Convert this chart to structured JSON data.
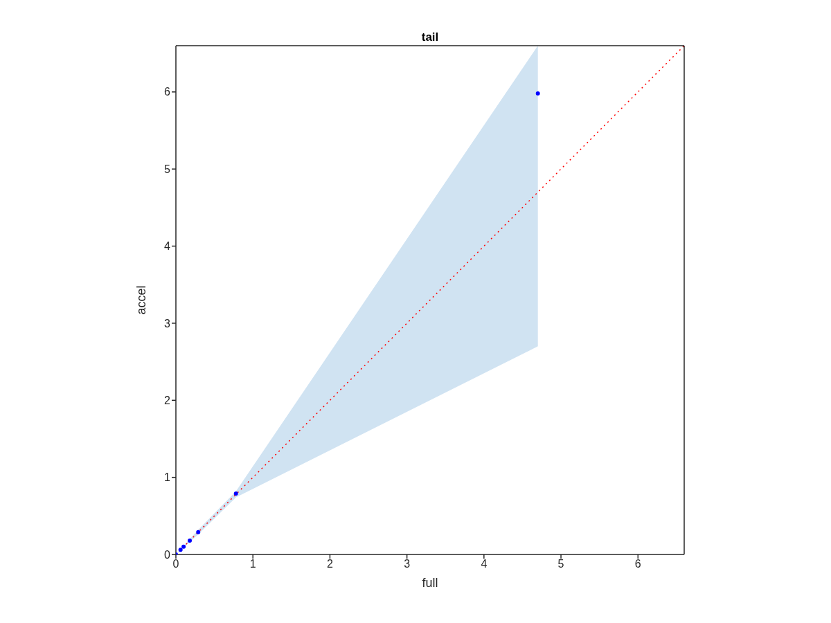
{
  "chart_data": {
    "type": "scatter",
    "title": "tail",
    "xlabel": "full",
    "ylabel": "accel",
    "xlim": [
      0,
      6.6
    ],
    "ylim": [
      0,
      6.6
    ],
    "xticks": [
      0,
      1,
      2,
      3,
      4,
      5,
      6
    ],
    "yticks": [
      0,
      1,
      2,
      3,
      4,
      5,
      6
    ],
    "grid": false,
    "legend": false,
    "series": [
      {
        "color": "#0000ff",
        "marker": "circle",
        "x": [
          0,
          0.06,
          0.1,
          0.18,
          0.29,
          0.78,
          4.7
        ],
        "values": [
          0,
          0.06,
          0.1,
          0.18,
          0.29,
          0.79,
          5.98
        ],
        "lower": [
          0,
          0.05,
          0.09,
          0.16,
          0.26,
          0.74,
          2.7
        ],
        "upper": [
          0,
          0.07,
          0.11,
          0.2,
          0.32,
          0.82,
          6.6
        ]
      },
      {
        "type": "line",
        "color": "#ff0000",
        "line_style": "dotted",
        "marker": "none",
        "x": [
          0,
          6.6
        ],
        "values": [
          0,
          6.6
        ]
      }
    ]
  }
}
